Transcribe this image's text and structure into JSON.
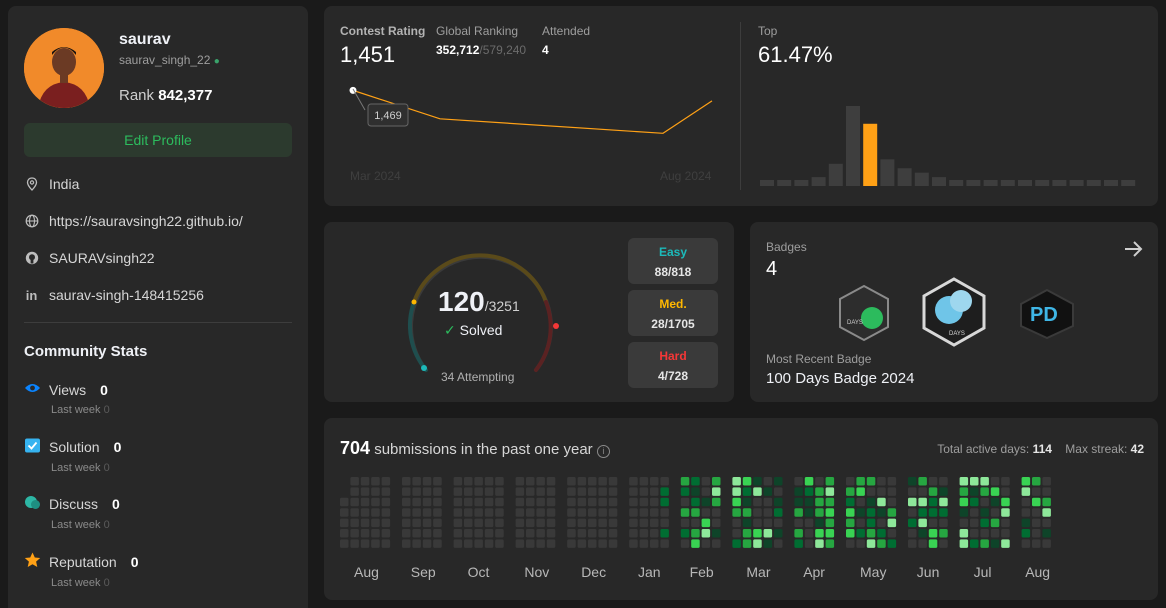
{
  "profile": {
    "username": "saurav",
    "handle": "saurav_singh_22",
    "rank_label": "Rank",
    "rank_value": "842,377",
    "edit_label": "Edit Profile",
    "location": "India",
    "website": "https://sauravsingh22.github.io/",
    "github": "SAURAVsingh22",
    "linkedin": "saurav-singh-148415256"
  },
  "community": {
    "title": "Community Stats",
    "items": [
      {
        "label": "Views",
        "value": "0",
        "sub": "Last week",
        "sub_value": "0",
        "icon": "eye-icon",
        "color": "#0a84ff"
      },
      {
        "label": "Solution",
        "value": "0",
        "sub": "Last week",
        "sub_value": "0",
        "icon": "check-square-icon",
        "color": "#36b3f0"
      },
      {
        "label": "Discuss",
        "value": "0",
        "sub": "Last week",
        "sub_value": "0",
        "icon": "chat-icon",
        "color": "#2db7a5"
      },
      {
        "label": "Reputation",
        "value": "0",
        "sub": "Last week",
        "sub_value": "0",
        "icon": "star-icon",
        "color": "#ffa116"
      }
    ]
  },
  "contest": {
    "rating_label": "Contest Rating",
    "rating_value": "1,451",
    "global_label": "Global Ranking",
    "global_value": "352,712",
    "global_total": "/579,240",
    "attended_label": "Attended",
    "attended_value": "4",
    "top_label": "Top",
    "top_value": "61.47%",
    "tooltip": "1,469",
    "x_start": "Mar 2024",
    "x_end": "Aug 2024",
    "accent": "#ffa116"
  },
  "chart_data": [
    {
      "type": "line",
      "title": "Contest Rating",
      "xlabel": "",
      "ylabel": "",
      "x": [
        "Mar 2024",
        "",
        "Aug 2024",
        ""
      ],
      "values": [
        1469,
        1420,
        1395,
        1451
      ]
    },
    {
      "type": "bar",
      "title": "Top",
      "values": [
        1,
        1,
        1,
        2,
        5,
        18,
        14,
        6,
        4,
        3,
        2,
        1,
        1,
        1,
        1,
        1,
        1,
        1,
        1,
        1,
        1,
        1
      ],
      "highlight_index": 6
    }
  ],
  "solved": {
    "solved_value": "120",
    "solved_total": "/3251",
    "solved_label": "Solved",
    "attempting": "34 Attempting",
    "easy_label": "Easy",
    "easy_value": "88/818",
    "med_label": "Med.",
    "med_value": "28/1705",
    "hard_label": "Hard",
    "hard_value": "4/728",
    "easy_color": "#1cbaba",
    "med_color": "#ffb700",
    "hard_color": "#f63737"
  },
  "badges": {
    "label": "Badges",
    "count": "4",
    "recent_label": "Most Recent Badge",
    "recent_value": "100 Days Badge 2024",
    "badge_texts": [
      "DAYS",
      "DAYS",
      "PD"
    ]
  },
  "submissions": {
    "count": "704",
    "text": "submissions in the past one year",
    "active_label": "Total active days:",
    "active_value": "114",
    "streak_label": "Max streak:",
    "streak_value": "42",
    "months": [
      "Aug",
      "Sep",
      "Oct",
      "Nov",
      "Dec",
      "Jan",
      "Feb",
      "Mar",
      "Apr",
      "May",
      "Jun",
      "Jul",
      "Aug"
    ]
  }
}
